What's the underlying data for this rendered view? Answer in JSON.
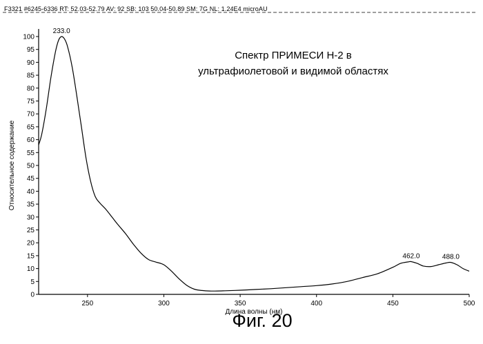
{
  "header": "F3321 #6245-6336  RT: 52.03-52.79  AV: 92  SB: 103 50.04-50.89  SM: 7G  NL: 1.24E4  microAU",
  "figure_caption": "Фиг. 20",
  "chart_data": {
    "type": "line",
    "title_lines": [
      "Спектр  ПРИМЕСИ Н-2 в",
      "ультрафиолетовой и видимой областях"
    ],
    "xlabel": "Длина волны (нм)",
    "ylabel": "Относительное содержание",
    "xlim": [
      218,
      500
    ],
    "ylim": [
      0,
      100
    ],
    "x_ticks": [
      250,
      300,
      350,
      400,
      450,
      500
    ],
    "y_ticks": [
      0,
      5,
      10,
      15,
      20,
      25,
      30,
      35,
      40,
      45,
      50,
      55,
      60,
      65,
      70,
      75,
      80,
      85,
      90,
      95,
      100
    ],
    "grid": false,
    "series": [
      {
        "x": [
          218,
          220,
          223,
          226,
          229,
          231,
          233,
          235,
          237,
          240,
          243,
          246,
          249,
          252,
          255,
          258,
          262,
          266,
          270,
          275,
          280,
          285,
          290,
          295,
          300,
          305,
          310,
          315,
          320,
          325,
          330,
          335,
          340,
          350,
          360,
          370,
          380,
          390,
          400,
          410,
          420,
          430,
          440,
          450,
          455,
          460,
          462,
          466,
          470,
          475,
          480,
          485,
          488,
          492,
          496,
          500
        ],
        "y": [
          58,
          62,
          72,
          84,
          94,
          98.5,
          100,
          99,
          96,
          88,
          77,
          65,
          53,
          44,
          38,
          35.5,
          33,
          30,
          27,
          23.5,
          19.5,
          16,
          13.5,
          12.5,
          11.5,
          9,
          6,
          3.5,
          2,
          1.5,
          1.3,
          1.3,
          1.4,
          1.6,
          1.9,
          2.2,
          2.6,
          3,
          3.4,
          4,
          5,
          6.5,
          8,
          10.5,
          12,
          12.6,
          12.7,
          12,
          11,
          10.8,
          11.5,
          12.2,
          12.4,
          11.5,
          10,
          9
        ]
      }
    ],
    "peak_labels": [
      {
        "x": 233,
        "y": 100,
        "label": "233.0"
      },
      {
        "x": 462,
        "y": 12.7,
        "label": "462.0"
      },
      {
        "x": 488,
        "y": 12.4,
        "label": "488.0"
      }
    ]
  }
}
